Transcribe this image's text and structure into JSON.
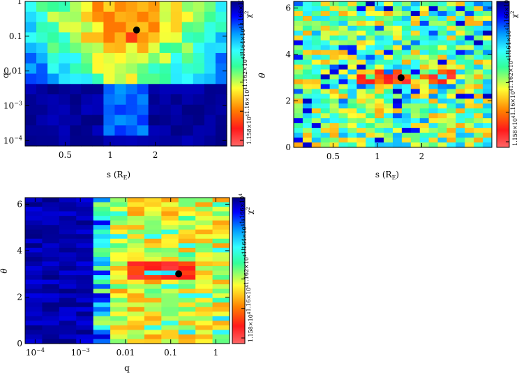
{
  "chart_data": [
    {
      "type": "heatmap",
      "name": "s-q",
      "xlabel": "s (R",
      "xlabel_sub": "E",
      "xlabel_close": ")",
      "ylabel": "q",
      "xscale": "log",
      "yscale": "log",
      "xlim": [
        0.27,
        6.0
      ],
      "ylim": [
        7e-05,
        1.0
      ],
      "xticks": [
        {
          "v": 0.5,
          "label": "0.5"
        },
        {
          "v": 1,
          "label": "1"
        },
        {
          "v": 2,
          "label": "2"
        }
      ],
      "yticks": [
        {
          "v": 1,
          "label": "1"
        },
        {
          "v": 0.1,
          "label": "0.1"
        },
        {
          "v": 0.01,
          "label": "0.01"
        },
        {
          "v": 0.001,
          "label": "10",
          "exp": "−3"
        },
        {
          "v": 0.0001,
          "label": "10",
          "exp": "−4"
        }
      ],
      "best_fit": {
        "x": 1.5,
        "y": 0.15
      },
      "grid_ncols": 18,
      "grid_nrows": 14,
      "grid_desc": "chi-square map; low values (red) concentrated at q ~ 0.02-0.5 and s ~ 0.5-2; high values (dark blue) for q < 0.005",
      "chi2_range": [
        11580,
        11660
      ]
    },
    {
      "type": "heatmap",
      "name": "s-theta",
      "xlabel": "s (R",
      "xlabel_sub": "E",
      "xlabel_close": ")",
      "ylabel": "θ",
      "xscale": "log",
      "yscale": "linear",
      "xlim": [
        0.27,
        6.0
      ],
      "ylim": [
        0,
        6.283
      ],
      "xticks": [
        {
          "v": 0.5,
          "label": "0.5"
        },
        {
          "v": 1,
          "label": "1"
        },
        {
          "v": 2,
          "label": "2"
        }
      ],
      "yticks": [
        {
          "v": 0,
          "label": "0"
        },
        {
          "v": 2,
          "label": "2"
        },
        {
          "v": 4,
          "label": "4"
        },
        {
          "v": 6,
          "label": "6"
        }
      ],
      "best_fit": {
        "x": 1.45,
        "y": 3.0
      },
      "grid_ncols": 22,
      "grid_nrows": 30,
      "grid_desc": "chi-square map; mostly green/yellow with scattered blue; red minimum band near theta ~ 3",
      "chi2_range": [
        11580,
        11660
      ]
    },
    {
      "type": "heatmap",
      "name": "q-theta",
      "xlabel": "q",
      "ylabel": "θ",
      "xscale": "log",
      "yscale": "linear",
      "xlim": [
        6e-05,
        2.0
      ],
      "ylim": [
        0,
        6.283
      ],
      "xticks": [
        {
          "v": 0.0001,
          "label": "10",
          "exp": "−4"
        },
        {
          "v": 0.001,
          "label": "10",
          "exp": "−3"
        },
        {
          "v": 0.01,
          "label": "0.01"
        },
        {
          "v": 0.1,
          "label": "0.1"
        },
        {
          "v": 1,
          "label": "1"
        }
      ],
      "yticks": [
        {
          "v": 0,
          "label": "0"
        },
        {
          "v": 2,
          "label": "2"
        },
        {
          "v": 4,
          "label": "4"
        },
        {
          "v": 6,
          "label": "6"
        }
      ],
      "best_fit": {
        "x": 0.15,
        "y": 3.0
      },
      "grid_ncols": 12,
      "grid_nrows": 32,
      "grid_desc": "chi-square map; dark blue for q < 0.005, yellow/green for larger q, red minimum band near theta ~ 3 at q ~ 0.02-0.3",
      "chi2_range": [
        11580,
        11660
      ]
    }
  ],
  "colorbar": {
    "label": "χ",
    "label_sup": "2",
    "ticks": [
      "1.158×10",
      "1.16×10",
      "1.162×10",
      "1.164×10",
      "1.166×10"
    ],
    "tick_exp": "4",
    "stops": [
      "#ff6666",
      "#ff1a1a",
      "#ff8000",
      "#ffff33",
      "#33ff99",
      "#33ffff",
      "#0099ff",
      "#0000ff",
      "#000080"
    ]
  }
}
